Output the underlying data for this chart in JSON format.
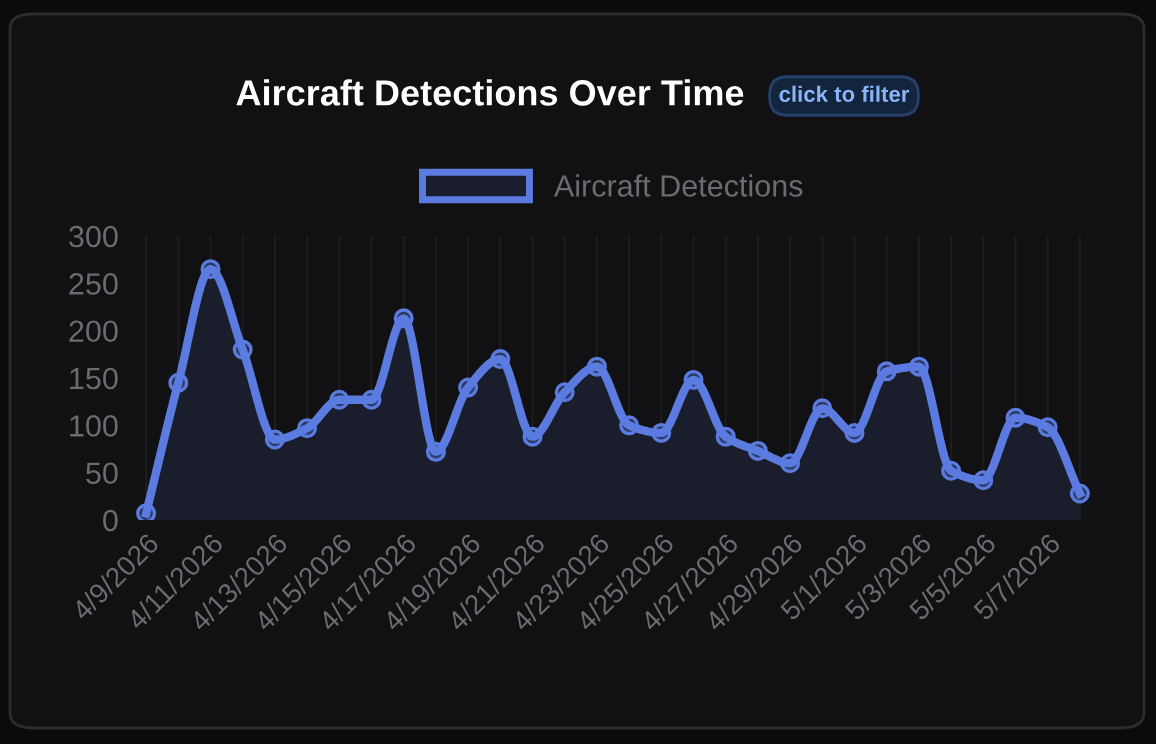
{
  "chart_data": {
    "type": "area",
    "title": "Aircraft Detections Over Time",
    "annotations": [
      "click to filter"
    ],
    "categories": [
      "4/9/2026",
      null,
      "4/11/2026",
      null,
      "4/13/2026",
      null,
      "4/15/2026",
      null,
      "4/17/2026",
      null,
      "4/19/2026",
      null,
      "4/21/2026",
      null,
      "4/23/2026",
      null,
      "4/25/2026",
      null,
      "4/27/2026",
      null,
      "4/29/2026",
      null,
      "5/1/2026",
      null,
      "5/3/2026",
      null,
      "5/5/2026",
      null,
      "5/7/2026",
      null
    ],
    "series": [
      {
        "name": "Aircraft Detections",
        "color": "#5b7be0",
        "values": [
          7,
          145,
          265,
          180,
          85,
          97,
          127,
          127,
          213,
          72,
          140,
          170,
          88,
          135,
          162,
          100,
          92,
          148,
          88,
          73,
          60,
          118,
          92,
          157,
          162,
          52,
          42,
          108,
          98,
          28
        ]
      }
    ],
    "ylim": [
      0,
      300
    ],
    "yticks": [
      0,
      50,
      100,
      150,
      200,
      250,
      300
    ],
    "grid": "x",
    "legend": "top",
    "marker": "circle",
    "line_style": "solid"
  }
}
